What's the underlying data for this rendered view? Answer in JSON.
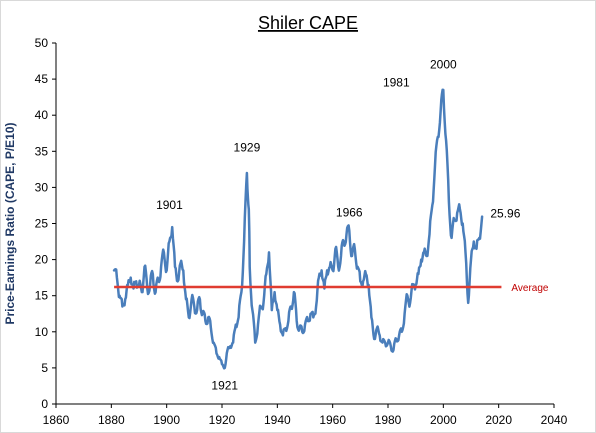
{
  "chart_data": {
    "type": "line",
    "title": "Shiler CAPE",
    "xlabel": "",
    "ylabel": "Price-Earnings Ratio (CAPE, P/E10)",
    "xlim": [
      1860,
      2040
    ],
    "ylim": [
      0,
      50
    ],
    "x_ticks": [
      "1860",
      "1880",
      "1900",
      "1920",
      "1940",
      "1960",
      "1980",
      "2000",
      "2020",
      "2040"
    ],
    "y_ticks": [
      "0",
      "5",
      "10",
      "15",
      "20",
      "25",
      "30",
      "35",
      "40",
      "45",
      "50"
    ],
    "grid": false,
    "series": [
      {
        "name": "",
        "color": "#4a7ebb",
        "x": [
          1881,
          1882,
          1883,
          1884,
          1885,
          1886,
          1887,
          1888,
          1889,
          1890,
          1891,
          1892,
          1893,
          1894,
          1895,
          1896,
          1897,
          1898,
          1899,
          1900,
          1901,
          1902,
          1903,
          1904,
          1905,
          1906,
          1907,
          1908,
          1909,
          1910,
          1911,
          1912,
          1913,
          1914,
          1915,
          1916,
          1917,
          1918,
          1919,
          1920,
          1921,
          1922,
          1923,
          1924,
          1925,
          1926,
          1927,
          1928,
          1929,
          1929.7,
          1930,
          1931,
          1932,
          1933,
          1934,
          1935,
          1936,
          1937,
          1938,
          1939,
          1940,
          1941,
          1942,
          1943,
          1944,
          1945,
          1946,
          1947,
          1948,
          1949,
          1950,
          1951,
          1952,
          1953,
          1954,
          1955,
          1956,
          1957,
          1958,
          1959,
          1960,
          1961,
          1962,
          1963,
          1964,
          1965,
          1966,
          1967,
          1968,
          1969,
          1970,
          1971,
          1972,
          1973,
          1974,
          1975,
          1976,
          1977,
          1978,
          1979,
          1980,
          1981,
          1982,
          1983,
          1984,
          1985,
          1986,
          1987,
          1988,
          1989,
          1990,
          1991,
          1992,
          1993,
          1994,
          1995,
          1996,
          1997,
          1998,
          1999,
          2000,
          2001,
          2002,
          2003,
          2004,
          2005,
          2006,
          2007,
          2008,
          2009,
          2010,
          2011,
          2012,
          2013,
          2014
        ],
        "values": [
          18.5,
          17.5,
          15.0,
          13.5,
          14.5,
          16.5,
          17.5,
          16.0,
          17.0,
          16.5,
          15.5,
          19.0,
          16.0,
          16.5,
          18.0,
          15.5,
          17.0,
          19.0,
          21.0,
          18.5,
          22.5,
          24.5,
          19.0,
          17.0,
          19.5,
          18.5,
          14.5,
          12.0,
          14.5,
          13.5,
          13.0,
          14.5,
          12.5,
          11.5,
          12.0,
          10.5,
          8.5,
          7.0,
          6.5,
          5.5,
          5.0,
          7.5,
          8.0,
          8.5,
          11.0,
          12.0,
          15.5,
          22.5,
          32.0,
          27.0,
          19.0,
          13.0,
          8.5,
          11.0,
          13.5,
          14.0,
          18.0,
          21.0,
          13.0,
          15.5,
          13.0,
          11.0,
          9.5,
          10.5,
          11.5,
          13.5,
          15.5,
          11.5,
          10.5,
          10.0,
          11.0,
          11.5,
          12.5,
          12.0,
          13.5,
          17.5,
          18.5,
          16.0,
          18.5,
          19.0,
          18.5,
          21.5,
          19.0,
          20.5,
          22.5,
          23.5,
          24.0,
          20.5,
          21.5,
          19.0,
          17.0,
          17.0,
          18.0,
          16.5,
          12.0,
          9.0,
          10.5,
          9.5,
          8.5,
          8.5,
          8.5,
          8.0,
          7.5,
          9.0,
          9.5,
          10.0,
          12.5,
          15.0,
          14.0,
          16.5,
          16.5,
          18.0,
          20.0,
          21.0,
          20.5,
          23.5,
          27.5,
          33.0,
          37.0,
          40.5,
          43.5,
          36.5,
          28.0,
          23.0,
          25.5,
          26.5,
          27.0,
          25.0,
          21.0,
          14.0,
          20.0,
          22.5,
          21.5,
          23.0,
          25.96
        ]
      }
    ],
    "average": {
      "label": "Average",
      "value": 16.2,
      "color": "#e03c31"
    },
    "annotations": [
      {
        "text": "1901",
        "x": 1901,
        "y": 27
      },
      {
        "text": "1921",
        "x": 1921,
        "y": 2
      },
      {
        "text": "1929",
        "x": 1929,
        "y": 35
      },
      {
        "text": "1966",
        "x": 1966,
        "y": 26
      },
      {
        "text": "1981",
        "x": 1983,
        "y": 44
      },
      {
        "text": "2000",
        "x": 2000,
        "y": 46.5
      },
      {
        "text": "25.96",
        "x": 2021,
        "y": 25.8
      }
    ],
    "colors": {
      "axis_text_y_title": "#1f3864",
      "axis_line": "#000000",
      "avg_label_color": "#c00000"
    }
  }
}
